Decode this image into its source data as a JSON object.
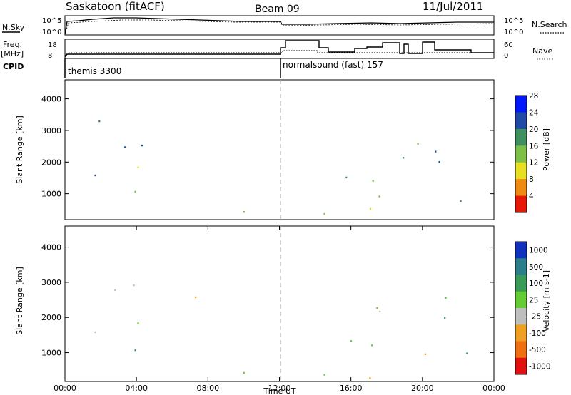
{
  "header": {
    "station": "Saskatoon (fitACF)",
    "beam": "Beam 09",
    "date": "11/Jul/2011"
  },
  "panels": {
    "noise_left": "N.Sky",
    "noise_right": "N.Search",
    "noise_ticks": [
      "10^5",
      "10^0"
    ],
    "freq_label": [
      "Freq.",
      "[MHz]"
    ],
    "freq_ticks": [
      "18",
      "8"
    ],
    "nave_label": "Nave",
    "nave_ticks": [
      "60",
      "0"
    ],
    "cpid_label": "CPID",
    "cpid_segments": [
      "themis 3300",
      "normalsound (fast) 157"
    ]
  },
  "colors": {
    "scatter_green": "#2e8b57",
    "ground_grey": "#bebebe"
  },
  "chart_data": [
    {
      "type": "heatmap",
      "quantity": "Power",
      "ylabel": "Slant Range [km]",
      "ylim": [
        180,
        4600
      ],
      "yticks": [
        1000,
        2000,
        3000,
        4000
      ],
      "xlim": [
        0,
        24
      ],
      "colorbar_label": "Power [dB]",
      "colorbar_ticks": [
        "4",
        "8",
        "12",
        "16",
        "20",
        "24",
        "28"
      ],
      "colorbar_colors": [
        "#0018ff",
        "#1f4aa8",
        "#3f8f5f",
        "#7cc04a",
        "#e6e020",
        "#f08a10",
        "#e81808"
      ]
    },
    {
      "type": "heatmap",
      "quantity": "Velocity",
      "ylabel": "Slant Range [km]",
      "ylim": [
        180,
        4600
      ],
      "yticks": [
        1000,
        2000,
        3000,
        4000
      ],
      "xlim": [
        0,
        24
      ],
      "xlabel": "Time UT",
      "xticks": [
        "00:00",
        "04:00",
        "08:00",
        "12:00",
        "16:00",
        "20:00",
        "00:00"
      ],
      "colorbar_label": "Velocity [m s-1]",
      "colorbar_ticks": [
        "1000",
        "500",
        "100",
        "25",
        "-25",
        "-100",
        "-500",
        "-1000"
      ],
      "colorbar_colors": [
        "#1030c0",
        "#2e7d8a",
        "#3a9a58",
        "#66cc33",
        "#bebebe",
        "#f0a020",
        "#f07010",
        "#e41010"
      ]
    }
  ]
}
